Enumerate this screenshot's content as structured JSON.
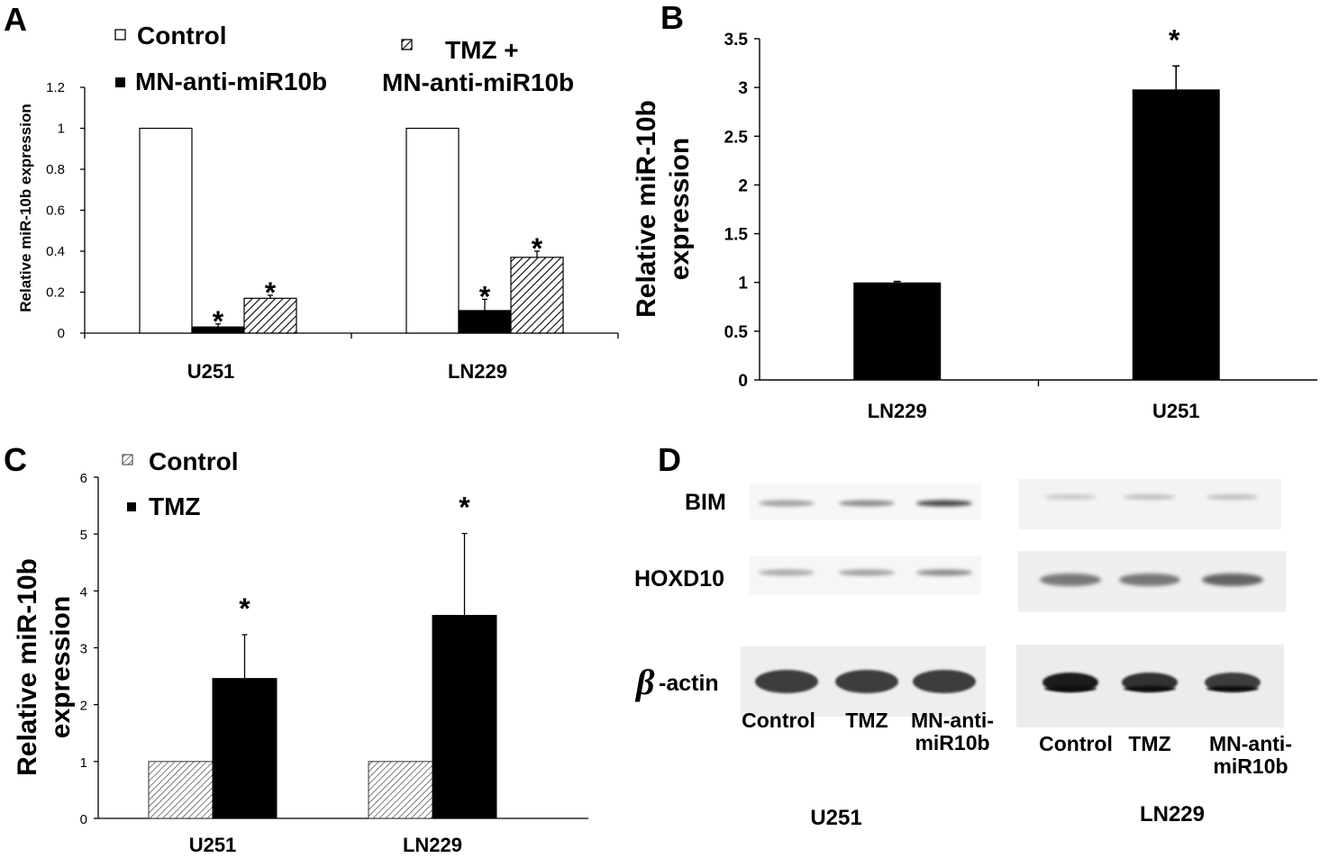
{
  "panels": {
    "A": {
      "letter": "A"
    },
    "B": {
      "letter": "B"
    },
    "C": {
      "letter": "C"
    },
    "D": {
      "letter": "D"
    }
  },
  "significance_mark": "*",
  "chart_data": [
    {
      "id": "A",
      "type": "bar",
      "ylabel": "Relative miR-10b expression",
      "ylim": [
        0,
        1.2
      ],
      "yticks": [
        "0",
        "0.2",
        "0.4",
        "0.6",
        "0.8",
        "1",
        "1.2"
      ],
      "categories": [
        "U251",
        "LN229"
      ],
      "series": [
        {
          "name": "Control",
          "values": [
            1.0,
            1.0
          ],
          "errors": [
            0,
            0
          ],
          "significant": [
            false,
            false
          ],
          "fill": "white"
        },
        {
          "name": "MN-anti-miR10b",
          "values": [
            0.03,
            0.11
          ],
          "errors": [
            0.015,
            0.055
          ],
          "significant": [
            true,
            true
          ],
          "fill": "black"
        },
        {
          "name": "TMZ + MN-anti-miR10b",
          "name_lines": [
            "TMZ +",
            "MN-anti-miR10b"
          ],
          "values": [
            0.17,
            0.37
          ],
          "errors": [
            0.015,
            0.03
          ],
          "significant": [
            true,
            true
          ],
          "fill": "hatch"
        }
      ],
      "legend_placement": "top"
    },
    {
      "id": "B",
      "type": "bar",
      "ylabel": "Relative miR-10b expression",
      "ylabel_lines": [
        "Relative miR-10b",
        "expression"
      ],
      "ylim": [
        0,
        3.5
      ],
      "yticks": [
        "0",
        "0.5",
        "1",
        "1.5",
        "2",
        "2.5",
        "3",
        "3.5"
      ],
      "categories": [
        "LN229",
        "U251"
      ],
      "values": [
        1.0,
        2.98
      ],
      "errors": [
        0.01,
        0.24
      ],
      "significant": [
        false,
        true
      ]
    },
    {
      "id": "C",
      "type": "bar",
      "ylabel": "Relative miR-10b expression",
      "ylabel_lines": [
        "Relative miR-10b",
        "expression"
      ],
      "ylim": [
        0,
        6
      ],
      "yticks": [
        "0",
        "1",
        "2",
        "3",
        "4",
        "5",
        "6"
      ],
      "categories": [
        "U251",
        "LN229"
      ],
      "series": [
        {
          "name": "Control",
          "values": [
            1.0,
            1.0
          ],
          "errors": [
            0,
            0
          ],
          "significant": [
            false,
            false
          ],
          "fill": "hatch"
        },
        {
          "name": "TMZ",
          "values": [
            2.46,
            3.57
          ],
          "errors": [
            0.77,
            1.44
          ],
          "significant": [
            true,
            true
          ],
          "fill": "black"
        }
      ],
      "legend_placement": "top-left"
    }
  ],
  "western_blot": {
    "rows": [
      "BIM",
      "HOXD10",
      "-actin"
    ],
    "beta_symbol": "β",
    "cell_lines": [
      {
        "name": "U251",
        "lanes": [
          "Control",
          "TMZ",
          "MN-anti-miR10b"
        ],
        "lane_lines": [
          [
            "Control"
          ],
          [
            "TMZ"
          ],
          [
            "MN-anti-",
            "miR10b"
          ]
        ]
      },
      {
        "name": "LN229",
        "lanes": [
          "Control",
          "TMZ",
          "MN-anti-miR10b"
        ],
        "lane_lines": [
          [
            "Control"
          ],
          [
            "TMZ"
          ],
          [
            "MN-anti-",
            "miR10b"
          ]
        ]
      }
    ],
    "band_intensity": {
      "U251": {
        "BIM": [
          0.35,
          0.45,
          0.8
        ],
        "HOXD10": [
          0.3,
          0.35,
          0.45
        ],
        "actin": [
          0.85,
          0.85,
          0.85
        ]
      },
      "LN229": {
        "BIM": [
          0.15,
          0.2,
          0.2
        ],
        "HOXD10": [
          0.55,
          0.55,
          0.65
        ],
        "actin": [
          1.0,
          0.9,
          0.85
        ]
      }
    }
  }
}
